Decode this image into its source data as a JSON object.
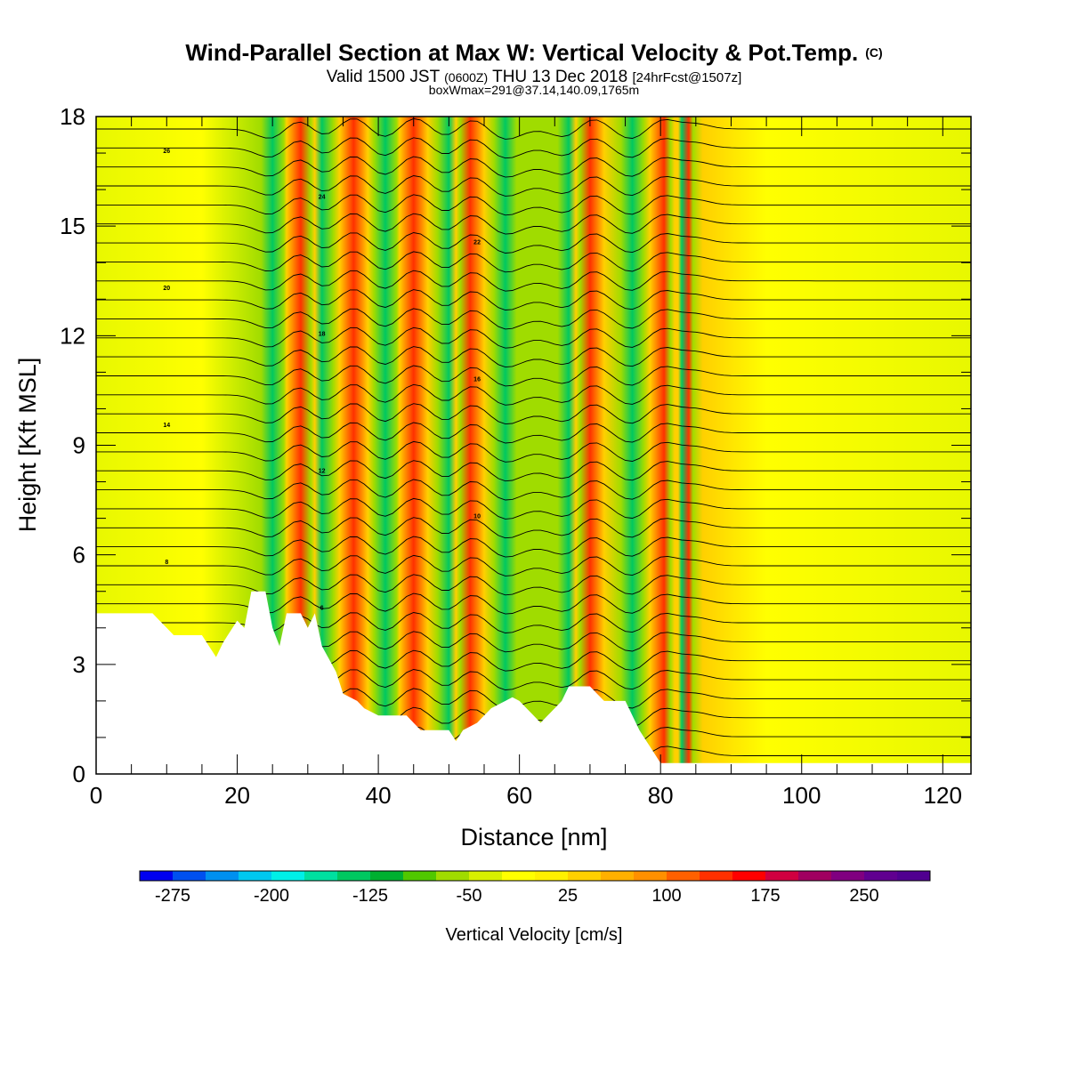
{
  "chart_data": {
    "type": "heatmap",
    "title": "Wind-Parallel Section at Max W: Vertical Velocity & Pot.Temp.",
    "title_mark": "(C)",
    "subtitle_parts": [
      "Valid 1500 JST",
      "(0600Z)",
      "THU 13 Dec 2018",
      "[24hrFcst@1507z]"
    ],
    "subtitle2": "boxWmax=291@37.14,140.09,1765m",
    "xlabel": "Distance [nm]",
    "ylabel": "Height [Kft MSL]",
    "xlim": [
      0,
      124
    ],
    "ylim": [
      0,
      18
    ],
    "x_ticks": [
      "0",
      "20",
      "40",
      "60",
      "80",
      "100",
      "120"
    ],
    "y_ticks": [
      "0",
      "3",
      "6",
      "9",
      "12",
      "15",
      "18"
    ],
    "colorbar": {
      "label": "Vertical Velocity [cm/s]",
      "tick_labels": [
        "-275",
        "-200",
        "-125",
        "-50",
        "25",
        "100",
        "175",
        "250"
      ],
      "min": -300,
      "max": 300,
      "step": 25,
      "colors": [
        "#0000f0",
        "#0050f0",
        "#0090f0",
        "#00c8f0",
        "#00f0e8",
        "#00e0a0",
        "#00c860",
        "#00b030",
        "#50c800",
        "#a0dc00",
        "#d8f000",
        "#ffff00",
        "#fff000",
        "#ffd000",
        "#ffb000",
        "#ff9000",
        "#ff6000",
        "#ff3000",
        "#ff0000",
        "#d00040",
        "#a00060",
        "#800080",
        "#600090",
        "#500090"
      ]
    },
    "contour_labels": [
      "26",
      "24",
      "22",
      "20",
      "18",
      "16",
      "14",
      "12",
      "10",
      "8",
      "6"
    ],
    "updraft_bands_nm": [
      29,
      36.5,
      45,
      53,
      70,
      80.5,
      84
    ],
    "downdraft_bands_nm": [
      25,
      32,
      41,
      50,
      58,
      67,
      76,
      83
    ],
    "max_updraft_cm_s": 291,
    "terrain_kft": [
      [
        0,
        4.4
      ],
      [
        8,
        4.4
      ],
      [
        9,
        4.2
      ],
      [
        10,
        4.0
      ],
      [
        11,
        3.8
      ],
      [
        15,
        3.8
      ],
      [
        16,
        3.5
      ],
      [
        17,
        3.2
      ],
      [
        18,
        3.6
      ],
      [
        20,
        4.2
      ],
      [
        21,
        4.0
      ],
      [
        22,
        5.0
      ],
      [
        24,
        5.0
      ],
      [
        25,
        4.0
      ],
      [
        26,
        3.5
      ],
      [
        27,
        4.4
      ],
      [
        29,
        4.4
      ],
      [
        30,
        4.0
      ],
      [
        31,
        4.4
      ],
      [
        32,
        3.5
      ],
      [
        34,
        2.8
      ],
      [
        35,
        2.2
      ],
      [
        37,
        2.0
      ],
      [
        38,
        1.8
      ],
      [
        40,
        1.6
      ],
      [
        44,
        1.6
      ],
      [
        45,
        1.4
      ],
      [
        46,
        1.2
      ],
      [
        50,
        1.2
      ],
      [
        51,
        0.9
      ],
      [
        52,
        1.2
      ],
      [
        54,
        1.4
      ],
      [
        55,
        1.6
      ],
      [
        56,
        1.8
      ],
      [
        58,
        2.0
      ],
      [
        59,
        2.1
      ],
      [
        60,
        2.0
      ],
      [
        61,
        1.8
      ],
      [
        62,
        1.6
      ],
      [
        63,
        1.4
      ],
      [
        64,
        1.6
      ],
      [
        65,
        1.8
      ],
      [
        66,
        2.0
      ],
      [
        67,
        2.4
      ],
      [
        70,
        2.4
      ],
      [
        71,
        2.2
      ],
      [
        72,
        2.0
      ],
      [
        75,
        2.0
      ],
      [
        76,
        1.6
      ],
      [
        77,
        1.2
      ],
      [
        78,
        0.9
      ],
      [
        79,
        0.6
      ],
      [
        80,
        0.3
      ],
      [
        82,
        0.3
      ],
      [
        124,
        0.3
      ]
    ]
  }
}
